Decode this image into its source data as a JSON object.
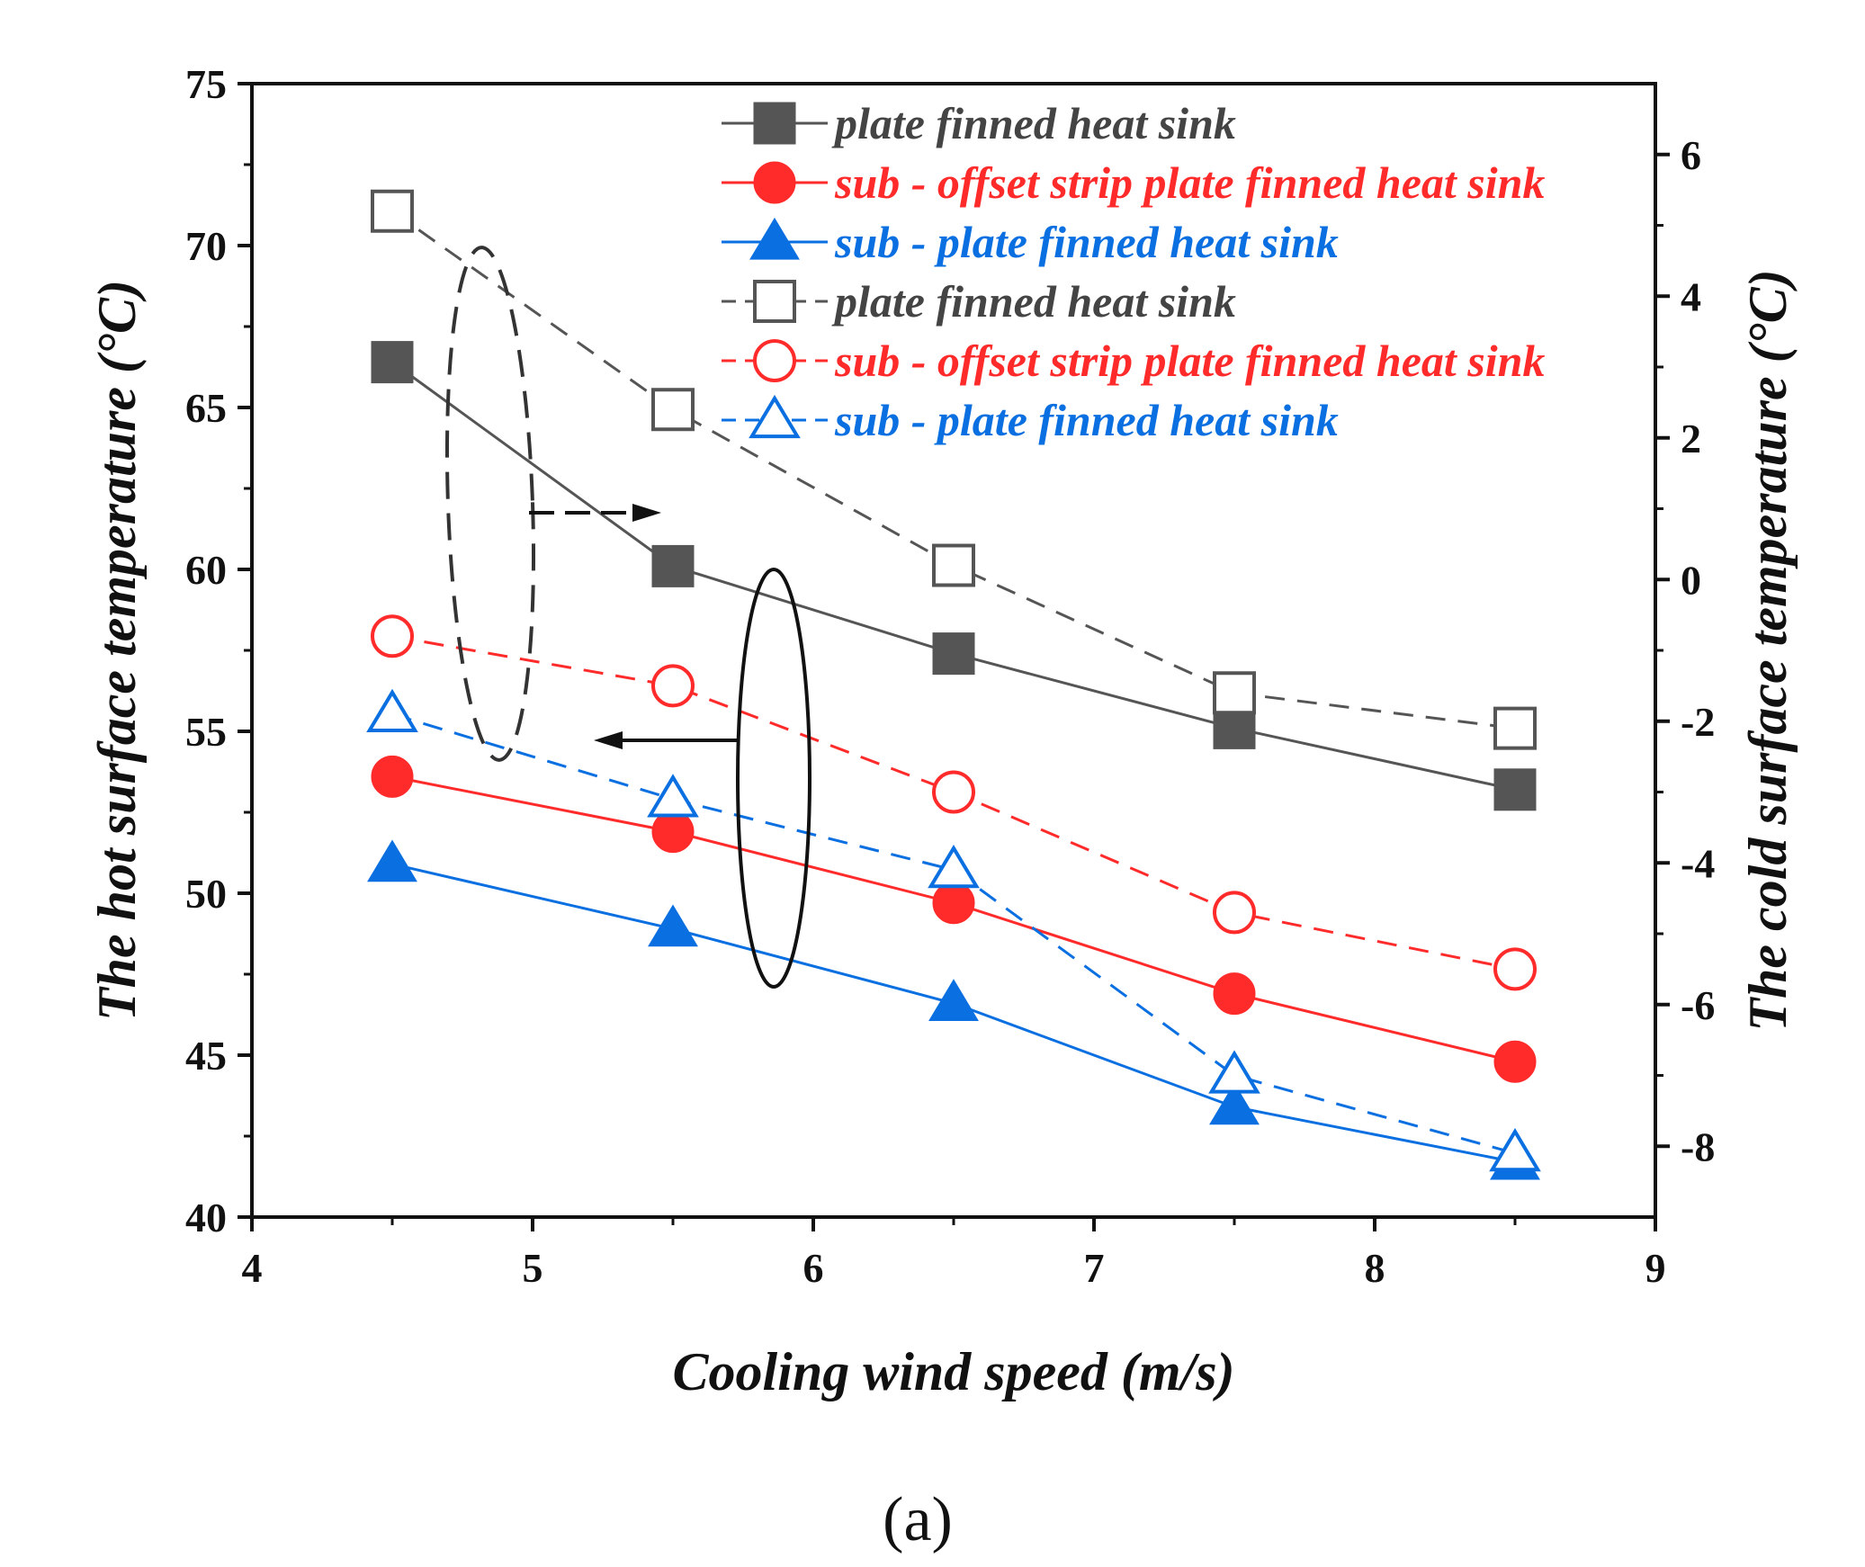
{
  "chart_data": {
    "type": "line",
    "title": "",
    "caption": "(a)",
    "xlabel": "Cooling wind speed (m/s)",
    "ylabel_left": "The hot surface temperature (°C)",
    "ylabel_right": "The cold surface temperature (°C)",
    "xlim": [
      4,
      9
    ],
    "ylim_left": [
      40,
      75
    ],
    "ylim_right": [
      -9,
      7
    ],
    "x_ticks": [
      "4",
      "5",
      "6",
      "7",
      "8",
      "9"
    ],
    "y_left_ticks": [
      "40",
      "45",
      "50",
      "55",
      "60",
      "65",
      "70",
      "75"
    ],
    "y_right_ticks": [
      "-8",
      "-6",
      "-4",
      "-2",
      "0",
      "2",
      "4",
      "6"
    ],
    "x": [
      4.5,
      5.5,
      6.5,
      7.5,
      8.5
    ],
    "series": [
      {
        "name": "plate finned heat sink",
        "axis": "left",
        "marker": "filled-square",
        "line": "solid",
        "color": "#555555",
        "values": [
          66.4,
          60.1,
          57.4,
          55.1,
          53.2
        ]
      },
      {
        "name": "sub - offset strip plate finned heat sink",
        "axis": "left",
        "marker": "filled-circle",
        "line": "solid",
        "color": "#ff2b2b",
        "values": [
          53.6,
          51.9,
          49.7,
          46.9,
          44.8
        ]
      },
      {
        "name": "sub - plate finned heat sink",
        "axis": "left",
        "marker": "filled-triangle",
        "line": "solid",
        "color": "#0a6fe0",
        "values": [
          50.9,
          48.9,
          46.6,
          43.4,
          41.7
        ]
      },
      {
        "name": "plate finned heat sink",
        "axis": "right",
        "marker": "open-square",
        "line": "dashed",
        "color": "#555555",
        "values": [
          5.2,
          2.4,
          0.2,
          -1.6,
          -2.1
        ]
      },
      {
        "name": "sub - offset strip plate finned heat sink",
        "axis": "right",
        "marker": "open-circle",
        "line": "dashed",
        "color": "#ff2b2b",
        "values": [
          -0.8,
          -1.5,
          -3.0,
          -4.7,
          -5.5
        ]
      },
      {
        "name": "sub - plate finned heat sink",
        "axis": "right",
        "marker": "open-triangle",
        "line": "dashed",
        "color": "#0a6fe0",
        "values": [
          -1.9,
          -3.1,
          -4.1,
          -7.0,
          -8.1
        ]
      }
    ],
    "legend_position": "top-right",
    "annotations": [
      "dashed ellipse with arrow pointing to right axis",
      "solid ellipse with arrow pointing to left axis"
    ]
  }
}
